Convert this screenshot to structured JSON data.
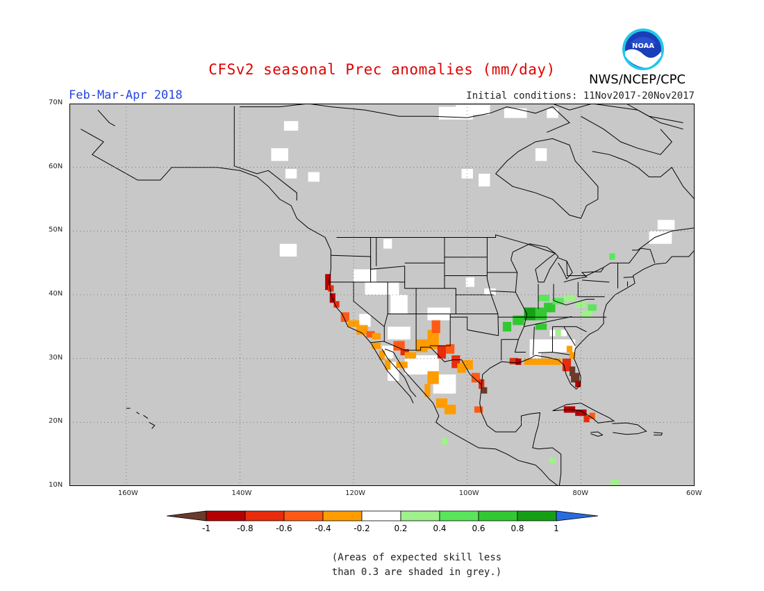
{
  "header": {
    "title": "CFSv2 seasonal Prec anomalies (mm/day)",
    "season": "Feb-Mar-Apr 2018",
    "initial_conditions": "Initial conditions: 11Nov2017-20Nov2017",
    "agency": "NWS/NCEP/CPC",
    "logo_text": "NOAA"
  },
  "map": {
    "lat_labels": [
      "70N",
      "60N",
      "50N",
      "40N",
      "30N",
      "20N",
      "10N"
    ],
    "lon_labels": [
      "160W",
      "140W",
      "120W",
      "100W",
      "80W",
      "60W"
    ],
    "lat_range": [
      10,
      70
    ],
    "lon_range": [
      -170,
      -60
    ],
    "grid": "dotted",
    "colors": {
      "land_background": "#c8c8c8",
      "skill_white": "#ffffff",
      "very_dry": "#6b3a2a",
      "dry_08": "#b40000",
      "dry_06": "#e82c0c",
      "dry_04": "#ff5a14",
      "dry_02": "#ff9c00",
      "wet_02": "#a0f08c",
      "wet_04": "#5ae65a",
      "wet_06": "#32c832",
      "wet_08": "#14a014",
      "very_wet": "#2a6ce0"
    }
  },
  "colorbar": {
    "labels": [
      "-1",
      "-0.8",
      "-0.6",
      "-0.4",
      "-0.2",
      "0.2",
      "0.4",
      "0.6",
      "0.8",
      "1"
    ],
    "segment_colors": [
      "#b40000",
      "#e82c0c",
      "#ff5a14",
      "#ff9c00",
      "#ffffff",
      "#a0f08c",
      "#5ae65a",
      "#32c832",
      "#14a014"
    ],
    "low_end_color": "#6b3a2a",
    "high_end_color": "#2a6ce0"
  },
  "note": {
    "line1": "(Areas of expected skill less",
    "line2": "than 0.3 are shaded in grey.)"
  }
}
